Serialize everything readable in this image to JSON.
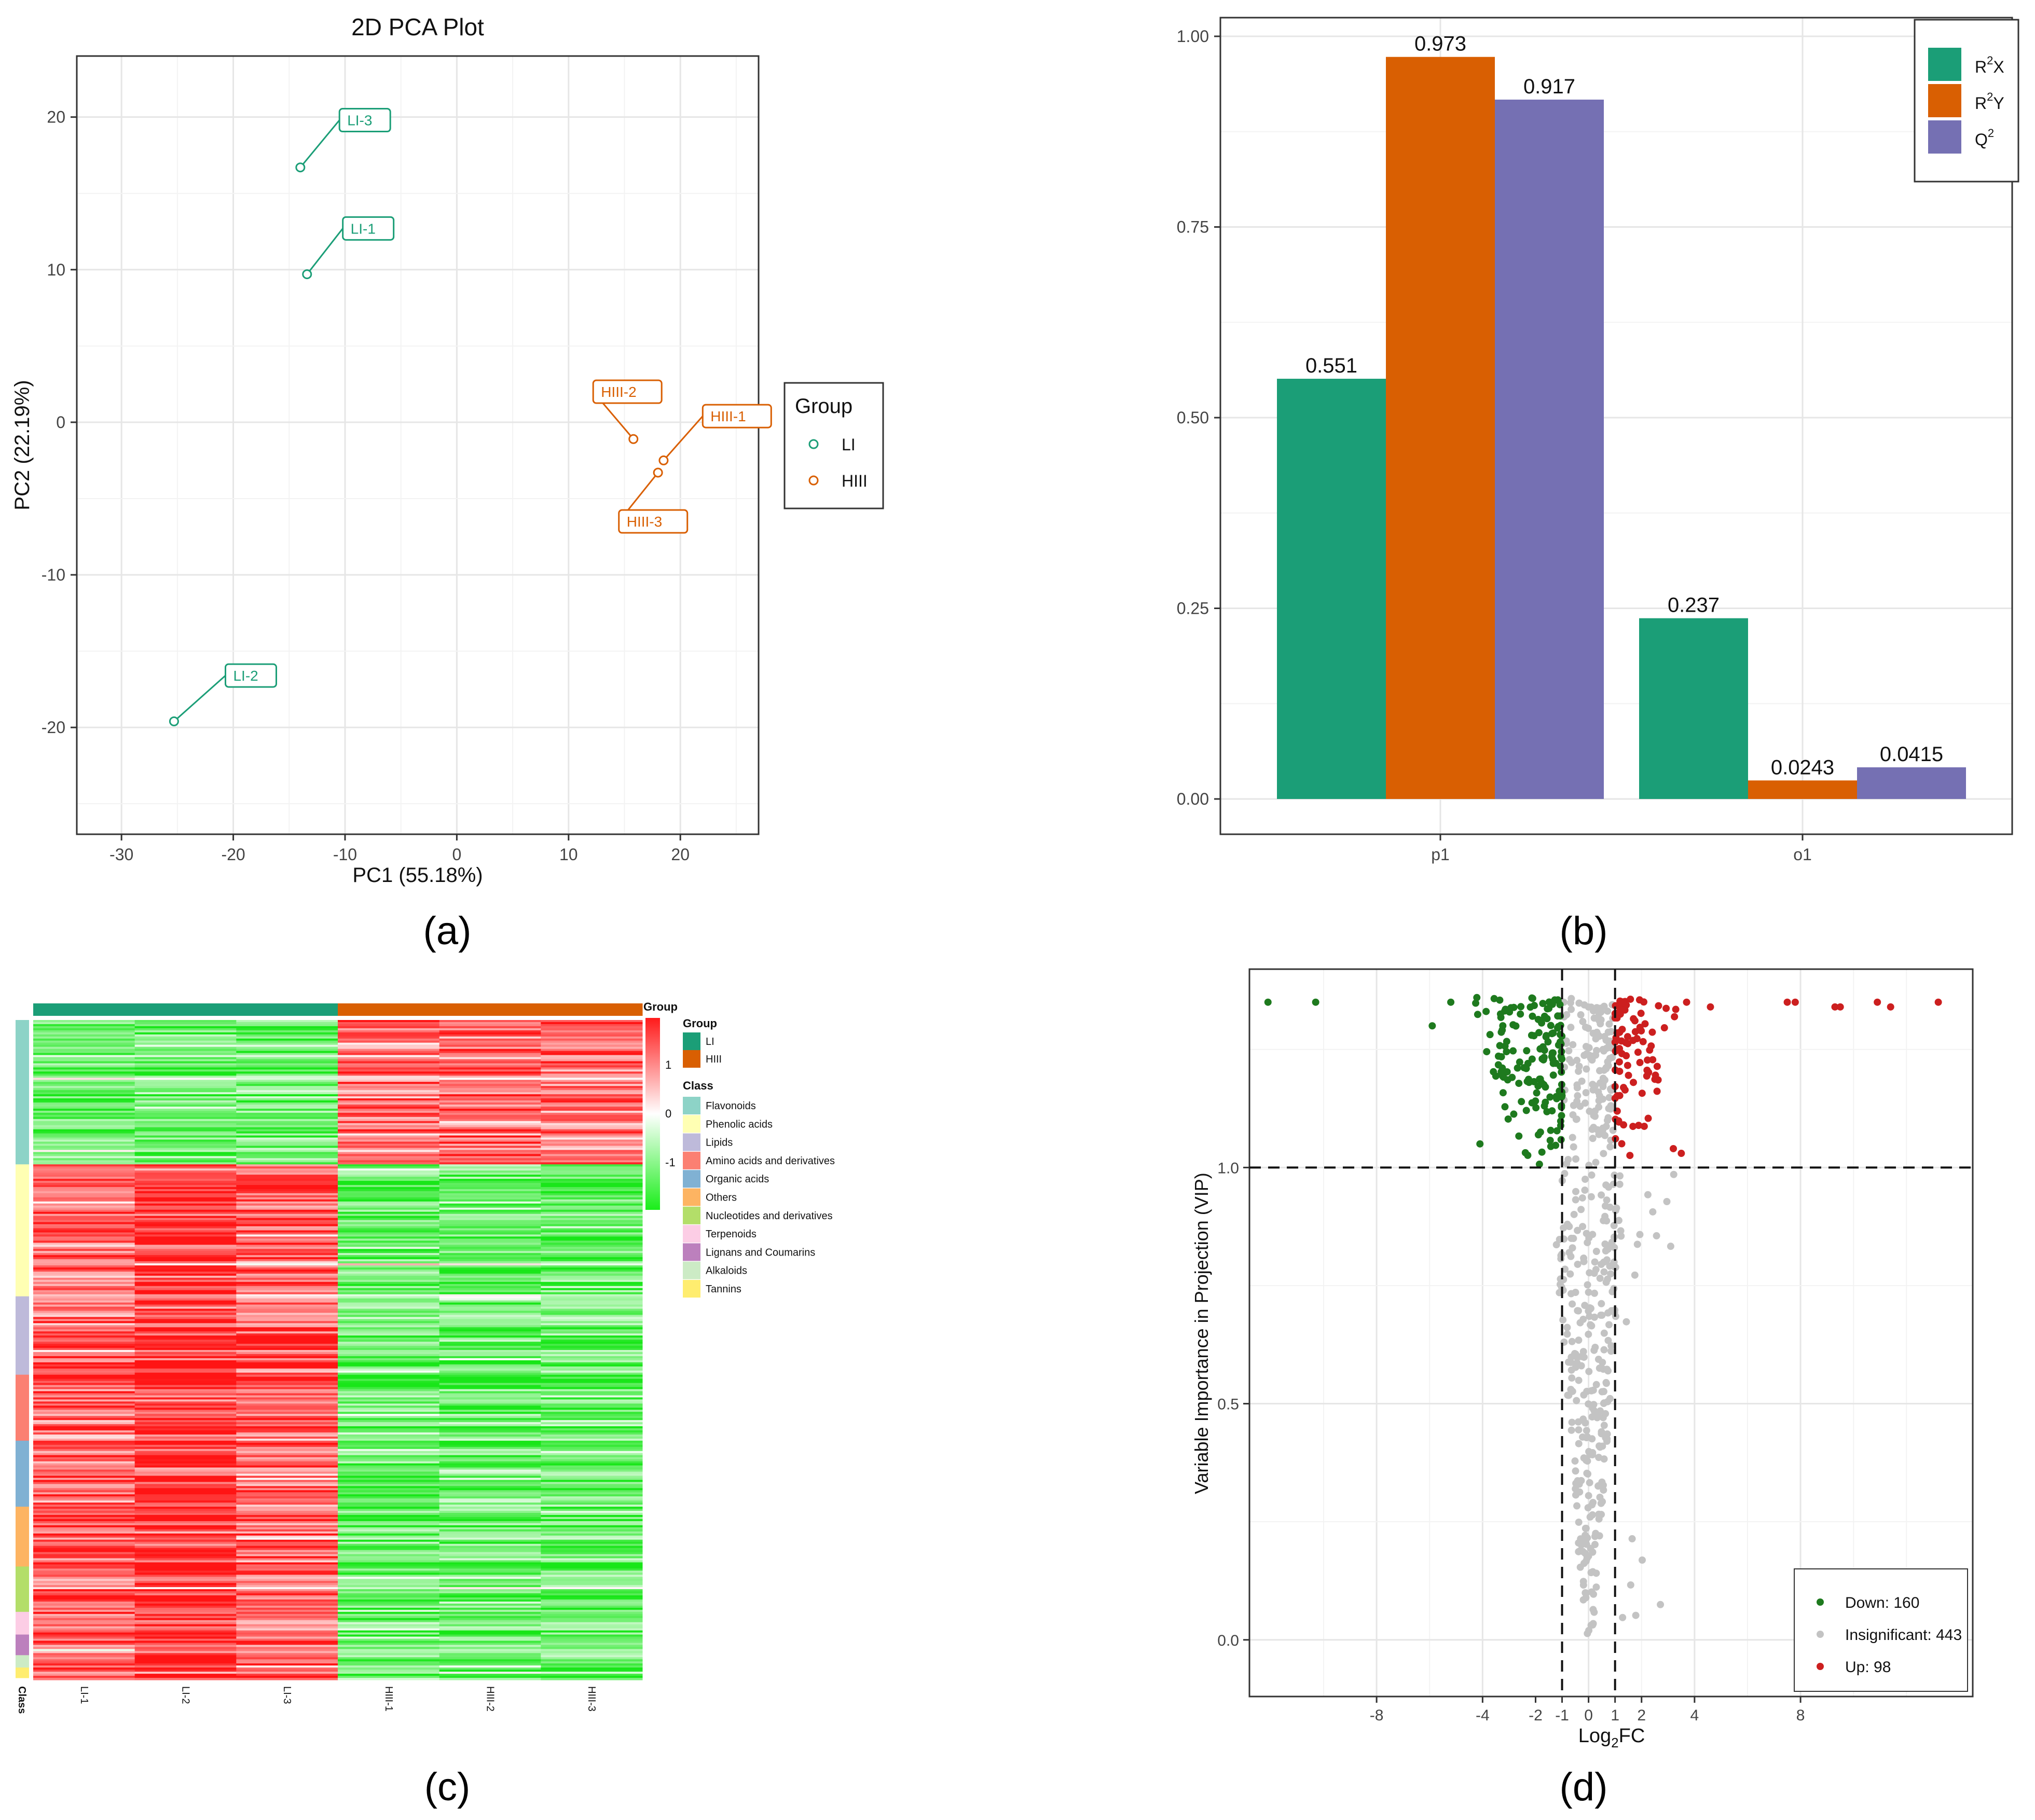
{
  "colors": {
    "teal": "#1b9e77",
    "orange": "#d95f02",
    "purple": "#7570b3",
    "down": "#1e7a1e",
    "up": "#cc1f1f",
    "insig": "#c3c3c3"
  },
  "panel_labels": [
    "(a)",
    "(b)",
    "(c)",
    "(d)"
  ],
  "chart_data": [
    {
      "id": "a",
      "type": "scatter",
      "title": "2D PCA Plot",
      "xlabel": "PC1 (55.18%)",
      "ylabel": "PC2 (22.19%)",
      "xlim": [
        -34,
        27
      ],
      "ylim": [
        -27,
        24
      ],
      "xticks": [
        -30,
        -20,
        -10,
        0,
        10,
        20
      ],
      "yticks": [
        -20,
        -10,
        0,
        10,
        20
      ],
      "grid": true,
      "legend": {
        "title": "Group",
        "placement": "right",
        "entries": [
          "LI",
          "HIII"
        ]
      },
      "points": [
        {
          "label": "LI-3",
          "group": "LI",
          "x": -14.0,
          "y": 16.7,
          "lx": -10.5,
          "ly": 19.8
        },
        {
          "label": "LI-1",
          "group": "LI",
          "x": -13.4,
          "y": 9.7,
          "lx": -10.2,
          "ly": 12.7
        },
        {
          "label": "LI-2",
          "group": "LI",
          "x": -25.3,
          "y": -19.6,
          "lx": -20.7,
          "ly": -16.6
        },
        {
          "label": "HIII-2",
          "group": "HIII",
          "x": 15.8,
          "y": -1.1,
          "lx": 12.2,
          "ly": 2.0
        },
        {
          "label": "HIII-1",
          "group": "HIII",
          "x": 18.5,
          "y": -2.5,
          "lx": 22.0,
          "ly": 0.4
        },
        {
          "label": "HIII-3",
          "group": "HIII",
          "x": 18.0,
          "y": -3.3,
          "lx": 14.5,
          "ly": -6.5
        }
      ]
    },
    {
      "id": "b",
      "type": "bar",
      "categories": [
        "p1",
        "o1"
      ],
      "ylim": [
        0,
        1.0
      ],
      "yticks": [
        "0.00",
        "0.25",
        "0.50",
        "0.75",
        "1.00"
      ],
      "grid": true,
      "legend": {
        "placement": "top-right"
      },
      "series": [
        {
          "name": "R2X",
          "base": "R",
          "sup": "2",
          "tail": "X",
          "values": [
            0.551,
            0.237
          ],
          "labels": [
            "0.551",
            "0.237"
          ]
        },
        {
          "name": "R2Y",
          "base": "R",
          "sup": "2",
          "tail": "Y",
          "values": [
            0.973,
            0.0243
          ],
          "labels": [
            "0.973",
            "0.0243"
          ]
        },
        {
          "name": "Q2",
          "base": "Q",
          "sup": "2",
          "tail": "",
          "values": [
            0.917,
            0.0415
          ],
          "labels": [
            "0.917",
            "0.0415"
          ]
        }
      ]
    },
    {
      "id": "c",
      "type": "heatmap",
      "columns": [
        "LI-1",
        "LI-2",
        "LI-3",
        "HIII-1",
        "HIII-2",
        "HIII-3"
      ],
      "column_groups": [
        "LI",
        "LI",
        "LI",
        "HIII",
        "HIII",
        "HIII"
      ],
      "group_bar_label": "Group",
      "row_annotation_label": "Class",
      "scale": {
        "min": -1.6,
        "max": 1.6,
        "ticks": [
          "1",
          "0",
          "-1"
        ]
      },
      "legend_group_title": "Group",
      "legend_groups": [
        "LI",
        "HIII"
      ],
      "legend_class_title": "Class",
      "classes": [
        {
          "name": "Flavonoids",
          "color": "#8dd3c7",
          "frac": 0.22
        },
        {
          "name": "Phenolic acids",
          "color": "#ffffb3",
          "frac": 0.2
        },
        {
          "name": "Lipids",
          "color": "#bebada",
          "frac": 0.12
        },
        {
          "name": "Amino acids and derivatives",
          "color": "#fb8072",
          "frac": 0.1
        },
        {
          "name": "Organic acids",
          "color": "#80b1d3",
          "frac": 0.1
        },
        {
          "name": "Others",
          "color": "#fdb462",
          "frac": 0.09
        },
        {
          "name": "Nucleotides and derivatives",
          "color": "#b3de69",
          "frac": 0.07
        },
        {
          "name": "Terpenoids",
          "color": "#fccde5",
          "frac": 0.035
        },
        {
          "name": "Lignans and Coumarins",
          "color": "#bc80bd",
          "frac": 0.03
        },
        {
          "name": "Alkaloids",
          "color": "#ccebc5",
          "frac": 0.02
        },
        {
          "name": "Tannins",
          "color": "#ffed6f",
          "frac": 0.015
        }
      ]
    },
    {
      "id": "d",
      "type": "scatter",
      "xlabel_base": "Log",
      "xlabel_sub": "2",
      "xlabel_tail": "FC",
      "ylabel": "Variable Importance in Projection (VIP)",
      "xlim": [
        -12.8,
        14.5
      ],
      "ylim": [
        -0.12,
        1.42
      ],
      "xticks": [
        -8,
        -4,
        -2,
        -1,
        0,
        1,
        2,
        4,
        8
      ],
      "yticks": [
        "0.0",
        "0.5",
        "1.0"
      ],
      "thresholds": {
        "x": [
          -1,
          1
        ],
        "y": 1.0
      },
      "grid": true,
      "legend": {
        "placement": "bottom-right"
      },
      "groups": [
        {
          "key": "down",
          "label": "Down: 160",
          "count": 160
        },
        {
          "key": "insig",
          "label": "Insignificant: 443",
          "count": 443
        },
        {
          "key": "up",
          "label": "Up: 98",
          "count": 98
        }
      ],
      "outliers": {
        "down": [
          [
            -12.1,
            1.35
          ],
          [
            -10.3,
            1.35
          ],
          [
            -5.9,
            1.3
          ],
          [
            -5.2,
            1.35
          ],
          [
            -4.1,
            1.05
          ]
        ],
        "up": [
          [
            3.7,
            1.35
          ],
          [
            4.6,
            1.34
          ],
          [
            7.5,
            1.35
          ],
          [
            7.8,
            1.35
          ],
          [
            9.3,
            1.34
          ],
          [
            9.5,
            1.34
          ],
          [
            10.9,
            1.35
          ],
          [
            11.4,
            1.34
          ],
          [
            13.2,
            1.35
          ],
          [
            3.2,
            1.04
          ],
          [
            3.5,
            1.03
          ]
        ]
      }
    }
  ]
}
